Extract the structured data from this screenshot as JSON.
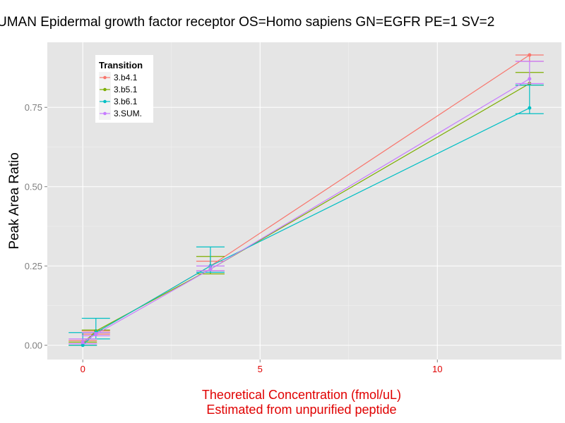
{
  "chart_data": {
    "type": "line",
    "title": "UMAN Epidermal growth factor receptor OS=Homo sapiens GN=EGFR PE=1 SV=2",
    "xlabel": [
      "Theoretical Concentration (fmol/uL)",
      "Estimated from unpurified peptide"
    ],
    "ylabel": "Peak Area Ratio",
    "xlim": [
      -1.0,
      13.5
    ],
    "ylim": [
      -0.045,
      0.955
    ],
    "x_ticks": [
      0,
      5,
      10
    ],
    "x_tick_labels": [
      "0",
      "5",
      "10"
    ],
    "y_ticks": [
      0.0,
      0.25,
      0.5,
      0.75
    ],
    "y_tick_labels": [
      "0.00",
      "0.25",
      "0.50",
      "0.75"
    ],
    "grid": true,
    "legend": {
      "title": "Transition",
      "placement": "top-left"
    },
    "series": [
      {
        "name": "3.b4.1",
        "color": "#F8766D",
        "points": [
          {
            "x": 0.0,
            "y": 0.01,
            "lo": 0.005,
            "hi": 0.015
          },
          {
            "x": 0.37,
            "y": 0.04,
            "lo": 0.035,
            "hi": 0.045
          },
          {
            "x": 3.6,
            "y": 0.25,
            "lo": 0.235,
            "hi": 0.265
          },
          {
            "x": 12.6,
            "y": 0.915,
            "lo": 0.895,
            "hi": 0.915
          }
        ]
      },
      {
        "name": "3.b5.1",
        "color": "#7CAE00",
        "points": [
          {
            "x": 0.0,
            "y": 0.005,
            "lo": 0.0,
            "hi": 0.01
          },
          {
            "x": 0.37,
            "y": 0.045,
            "lo": 0.04,
            "hi": 0.048
          },
          {
            "x": 3.6,
            "y": 0.24,
            "lo": 0.225,
            "hi": 0.28
          },
          {
            "x": 12.6,
            "y": 0.825,
            "lo": 0.82,
            "hi": 0.86
          }
        ]
      },
      {
        "name": "3.b6.1",
        "color": "#00BFC4",
        "points": [
          {
            "x": 0.0,
            "y": 0.0,
            "lo": 0.0,
            "hi": 0.04
          },
          {
            "x": 0.37,
            "y": 0.04,
            "lo": 0.02,
            "hi": 0.085
          },
          {
            "x": 3.6,
            "y": 0.25,
            "lo": 0.23,
            "hi": 0.31
          },
          {
            "x": 12.6,
            "y": 0.748,
            "lo": 0.73,
            "hi": 0.82
          }
        ]
      },
      {
        "name": "3.SUM.",
        "color": "#C77CFF",
        "points": [
          {
            "x": 0.0,
            "y": 0.01,
            "lo": 0.005,
            "hi": 0.02
          },
          {
            "x": 0.37,
            "y": 0.035,
            "lo": 0.03,
            "hi": 0.04
          },
          {
            "x": 3.6,
            "y": 0.24,
            "lo": 0.235,
            "hi": 0.25
          },
          {
            "x": 12.6,
            "y": 0.84,
            "lo": 0.825,
            "hi": 0.895
          }
        ]
      }
    ]
  }
}
